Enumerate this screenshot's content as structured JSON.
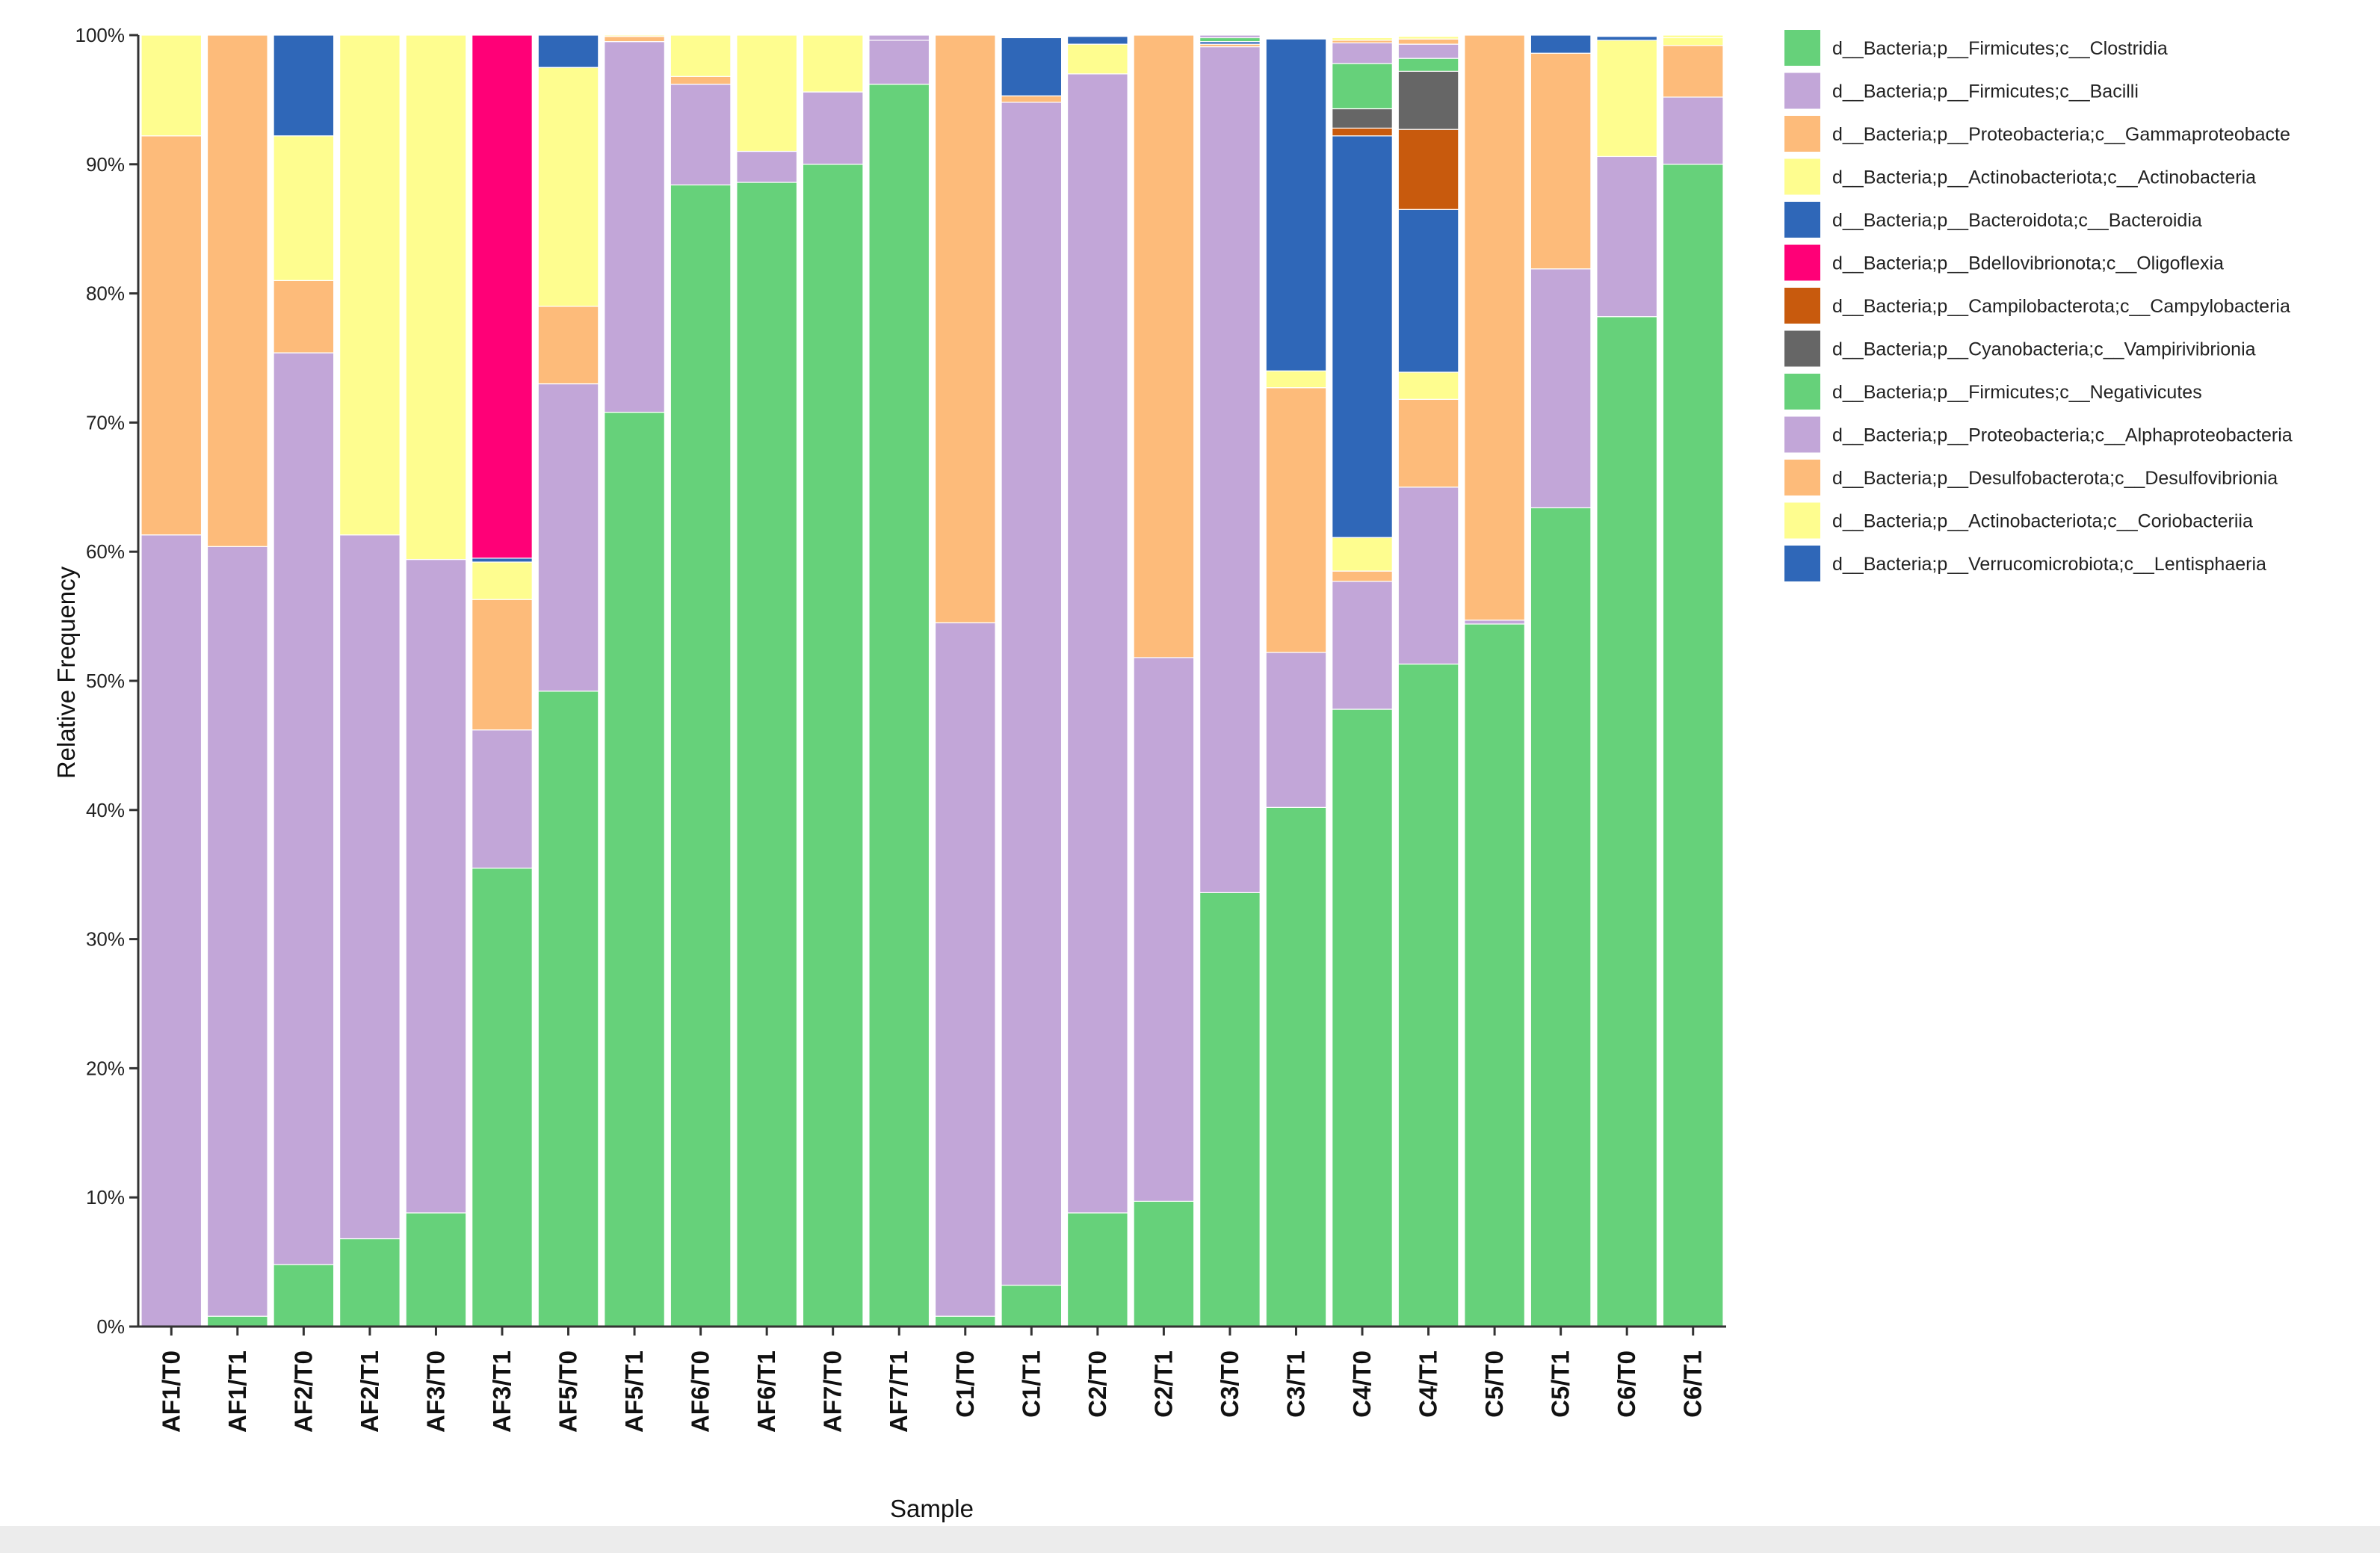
{
  "chart_data": {
    "type": "bar",
    "stacked": true,
    "title": "",
    "xlabel": "Sample",
    "ylabel": "Relative Frequency",
    "ylim": [
      0,
      100
    ],
    "yticks": [
      "0%",
      "10%",
      "20%",
      "30%",
      "40%",
      "50%",
      "60%",
      "70%",
      "80%",
      "90%",
      "100%"
    ],
    "legend_position": "right",
    "categories": [
      "AF1/T0",
      "AF1/T1",
      "AF2/T0",
      "AF2/T1",
      "AF3/T0",
      "AF3/T1",
      "AF5/T0",
      "AF5/T1",
      "AF6/T0",
      "AF6/T1",
      "AF7/T0",
      "AF7/T1",
      "C1/T0",
      "C1/T1",
      "C2/T0",
      "C2/T1",
      "C3/T0",
      "C3/T1",
      "C4/T0",
      "C4/T1",
      "C5/T0",
      "C5/T1",
      "C6/T0",
      "C6/T1"
    ],
    "series": [
      {
        "name": "d__Bacteria;p__Firmicutes;c__Clostridia",
        "color": "#66d17a",
        "values": [
          0,
          0.8,
          4.8,
          6.8,
          8.8,
          35.5,
          49.2,
          70.8,
          88.4,
          88.6,
          90.0,
          96.2,
          0.8,
          3.2,
          8.8,
          9.7,
          33.6,
          40.2,
          47.8,
          51.3,
          54.4,
          63.4,
          78.2,
          90.0
        ]
      },
      {
        "name": "d__Bacteria;p__Firmicutes;c__Bacilli",
        "color": "#c2a6d8",
        "values": [
          61.3,
          59.6,
          70.6,
          54.5,
          50.6,
          10.7,
          23.8,
          28.7,
          7.8,
          2.4,
          5.6,
          3.4,
          53.7,
          91.6,
          88.2,
          42.1,
          65.5,
          12.0,
          9.9,
          13.7,
          0.3,
          18.5,
          12.4,
          5.2
        ]
      },
      {
        "name": "d__Bacteria;p__Proteobacteria;c__Gammaproteobacteria",
        "color": "#fdbb7a",
        "values": [
          30.9,
          39.6,
          5.6,
          0,
          0,
          10.1,
          6.0,
          0.4,
          0.6,
          0,
          0,
          0,
          45.5,
          0.5,
          0,
          48.2,
          0.2,
          20.5,
          0.8,
          6.8,
          45.3,
          16.7,
          0,
          4.0
        ]
      },
      {
        "name": "d__Bacteria;p__Actinobacteriota;c__Actinobacteria",
        "color": "#fefd8f",
        "values": [
          7.8,
          0,
          11.2,
          38.7,
          40.6,
          2.9,
          18.5,
          0.1,
          3.2,
          9.0,
          4.4,
          0,
          0,
          0,
          2.3,
          0,
          0,
          1.3,
          2.6,
          2.1,
          0,
          0,
          9.0,
          0.6
        ]
      },
      {
        "name": "d__Bacteria;p__Bacteroidota;c__Bacteroidia",
        "color": "#2f67b8",
        "values": [
          0,
          0,
          7.8,
          0,
          0,
          0.3,
          2.5,
          0,
          0,
          0,
          0,
          0,
          0,
          4.5,
          0.6,
          0,
          0.2,
          25.7,
          31.1,
          12.6,
          0,
          1.4,
          0.3,
          0
        ]
      },
      {
        "name": "d__Bacteria;p__Bdellovibrionota;c__Oligoflexia",
        "color": "#ff0077",
        "values": [
          0,
          0,
          0,
          0,
          0,
          40.5,
          0,
          0,
          0,
          0,
          0,
          0,
          0,
          0,
          0,
          0,
          0,
          0,
          0,
          0,
          0,
          0,
          0,
          0
        ]
      },
      {
        "name": "d__Bacteria;p__Campilobacterota;c__Campylobacteria",
        "color": "#c85a0d",
        "values": [
          0,
          0,
          0,
          0,
          0,
          0,
          0,
          0,
          0,
          0,
          0,
          0,
          0,
          0,
          0,
          0,
          0,
          0,
          0.6,
          6.2,
          0,
          0,
          0,
          0
        ]
      },
      {
        "name": "d__Bacteria;p__Cyanobacteria;c__Vampirivibrionia",
        "color": "#666666",
        "values": [
          0,
          0,
          0,
          0,
          0,
          0,
          0,
          0,
          0,
          0,
          0,
          0,
          0,
          0,
          0,
          0,
          0,
          0,
          1.5,
          4.5,
          0,
          0,
          0,
          0
        ]
      },
      {
        "name": "d__Bacteria;p__Firmicutes;c__Negativicutes",
        "color": "#66d17a",
        "values": [
          0,
          0,
          0,
          0,
          0,
          0,
          0,
          0,
          0,
          0,
          0,
          0,
          0,
          0,
          0,
          0,
          0.3,
          0,
          3.5,
          1.0,
          0,
          0,
          0,
          0
        ]
      },
      {
        "name": "d__Bacteria;p__Proteobacteria;c__Alphaproteobacteria",
        "color": "#c2a6d8",
        "values": [
          0,
          0,
          0,
          0,
          0,
          0,
          0,
          0,
          0,
          0,
          0,
          0.4,
          0,
          0,
          0,
          0,
          0.2,
          0,
          1.6,
          1.1,
          0,
          0,
          0,
          0
        ]
      },
      {
        "name": "d__Bacteria;p__Desulfobacterota;c__Desulfovibrionia",
        "color": "#fdbb7a",
        "values": [
          0,
          0,
          0,
          0,
          0,
          0,
          0,
          0,
          0,
          0,
          0,
          0,
          0,
          0,
          0,
          0,
          0,
          0,
          0.2,
          0.4,
          0,
          0,
          0,
          0
        ]
      },
      {
        "name": "d__Bacteria;p__Actinobacteriota;c__Coriobacteriia",
        "color": "#fefd8f",
        "values": [
          0,
          0,
          0,
          0,
          0,
          0,
          0,
          0,
          0,
          0,
          0,
          0,
          0,
          0,
          0,
          0,
          0,
          0,
          0.2,
          0.2,
          0,
          0,
          0,
          0.2
        ]
      },
      {
        "name": "d__Bacteria;p__Verrucomicrobiota;c__Lentisphaeria",
        "color": "#2f67b8",
        "values": [
          0,
          0,
          0,
          0,
          0,
          0,
          0,
          0,
          0,
          0,
          0,
          0,
          0,
          0,
          0,
          0,
          0,
          0,
          0,
          0,
          0,
          0,
          0,
          0
        ]
      }
    ],
    "legend_labels": [
      "d__Bacteria;p__Firmicutes;c__Clostridia",
      "d__Bacteria;p__Firmicutes;c__Bacilli",
      "d__Bacteria;p__Proteobacteria;c__Gammaproteobacte",
      "d__Bacteria;p__Actinobacteriota;c__Actinobacteria",
      "d__Bacteria;p__Bacteroidota;c__Bacteroidia",
      "d__Bacteria;p__Bdellovibrionota;c__Oligoflexia",
      "d__Bacteria;p__Campilobacterota;c__Campylobacteria",
      "d__Bacteria;p__Cyanobacteria;c__Vampirivibrionia",
      "d__Bacteria;p__Firmicutes;c__Negativicutes",
      "d__Bacteria;p__Proteobacteria;c__Alphaproteobacteria",
      "d__Bacteria;p__Desulfobacterota;c__Desulfovibrionia",
      "d__Bacteria;p__Actinobacteriota;c__Coriobacteriia",
      "d__Bacteria;p__Verrucomicrobiota;c__Lentisphaeria"
    ]
  }
}
